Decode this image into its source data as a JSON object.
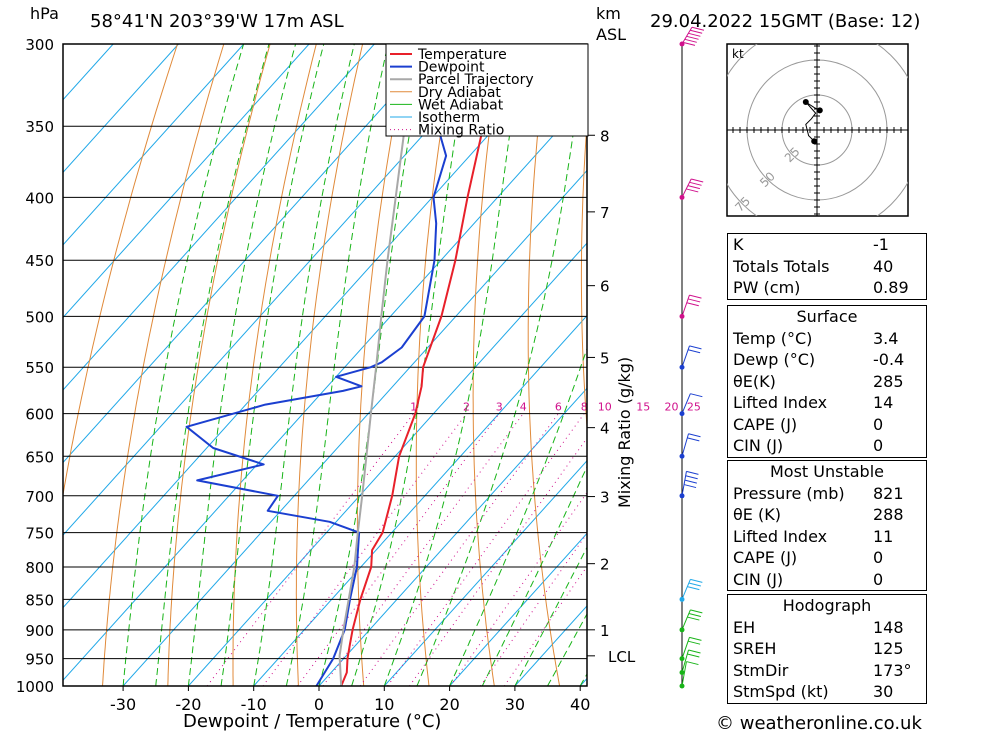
{
  "header": {
    "hpa_label": "hPa",
    "location": "58°41'N  203°39'W  17m  ASL",
    "km_label": "km",
    "asl_label": "ASL",
    "datetime": "29.04.2022  15GMT  (Base: 12)"
  },
  "footer": {
    "copyright": "© weatheronline.co.uk"
  },
  "colors": {
    "temperature": "#e8202a",
    "dewpoint": "#1b3fd0",
    "parcel": "#a8a8a8",
    "dry_adiabat": "#e08a3a",
    "wet_adiabat": "#18b418",
    "isotherm": "#20a8e8",
    "mixing_ratio": "#d0108c"
  },
  "chart_data": {
    "type": "line",
    "title": "58°41'N  203°39'W  17m  ASL",
    "xlabel": "Dewpoint / Temperature (°C)",
    "ylabel": "hPa",
    "right_label": "Mixing Ratio (g/kg)",
    "xlim": [
      -40,
      40
    ],
    "ylim": [
      1000,
      300
    ],
    "x_ticks": [
      "-30",
      "-20",
      "-10",
      "0",
      "10",
      "20",
      "30",
      "40"
    ],
    "pressure_levels": [
      "300",
      "350",
      "400",
      "450",
      "500",
      "550",
      "600",
      "650",
      "700",
      "750",
      "800",
      "850",
      "900",
      "950",
      "1000"
    ],
    "km_ticks": [
      {
        "km": "1",
        "p": 900
      },
      {
        "km": "2",
        "p": 795
      },
      {
        "km": "3",
        "p": 701
      },
      {
        "km": "4",
        "p": 616
      },
      {
        "km": "5",
        "p": 540
      },
      {
        "km": "6",
        "p": 472
      },
      {
        "km": "7",
        "p": 411
      },
      {
        "km": "8",
        "p": 356
      }
    ],
    "lcl": {
      "label": "LCL",
      "p": 945
    },
    "mixing_ratio_labels": [
      "1",
      "2",
      "3",
      "4",
      "6",
      "8",
      "10",
      "15",
      "20",
      "25"
    ],
    "legend": [
      "Temperature",
      "Dewpoint",
      "Parcel Trajectory",
      "Dry Adiabat",
      "Wet Adiabat",
      "Isotherm",
      "Mixing Ratio"
    ],
    "series": [
      {
        "name": "Temperature",
        "points": [
          [
            1000,
            3.4
          ],
          [
            975,
            2.4
          ],
          [
            950,
            0.6
          ],
          [
            925,
            -1.0
          ],
          [
            900,
            -2.6
          ],
          [
            850,
            -5.6
          ],
          [
            800,
            -8.4
          ],
          [
            775,
            -10.6
          ],
          [
            750,
            -11.4
          ],
          [
            700,
            -15.0
          ],
          [
            650,
            -19.4
          ],
          [
            600,
            -22.8
          ],
          [
            570,
            -25.6
          ],
          [
            550,
            -28.0
          ],
          [
            500,
            -32.2
          ],
          [
            450,
            -37.8
          ],
          [
            400,
            -44.6
          ],
          [
            350,
            -52.0
          ],
          [
            300,
            -60.4
          ]
        ]
      },
      {
        "name": "Dewpoint",
        "points": [
          [
            1000,
            -0.4
          ],
          [
            950,
            -1.6
          ],
          [
            900,
            -3.8
          ],
          [
            850,
            -7.2
          ],
          [
            800,
            -10.6
          ],
          [
            750,
            -15.0
          ],
          [
            735,
            -21.0
          ],
          [
            720,
            -32.0
          ],
          [
            700,
            -32.5
          ],
          [
            680,
            -47.0
          ],
          [
            660,
            -39.0
          ],
          [
            640,
            -49.0
          ],
          [
            615,
            -56.0
          ],
          [
            590,
            -47.0
          ],
          [
            575,
            -37.0
          ],
          [
            570,
            -34.8
          ],
          [
            560,
            -40.0
          ],
          [
            550,
            -36.0
          ],
          [
            545,
            -35.0
          ],
          [
            530,
            -34.0
          ],
          [
            500,
            -34.8
          ],
          [
            450,
            -41.0
          ],
          [
            420,
            -45.8
          ],
          [
            400,
            -49.8
          ],
          [
            370,
            -53.6
          ],
          [
            350,
            -59.0
          ],
          [
            320,
            -64.0
          ],
          [
            300,
            -71.0
          ]
        ]
      },
      {
        "name": "Parcel Trajectory",
        "points": [
          [
            1000,
            3.4
          ],
          [
            945,
            -1.0
          ],
          [
            900,
            -4.0
          ],
          [
            850,
            -7.4
          ],
          [
            800,
            -11.0
          ],
          [
            750,
            -15.2
          ],
          [
            700,
            -19.6
          ],
          [
            650,
            -24.4
          ],
          [
            600,
            -29.6
          ],
          [
            550,
            -35.2
          ],
          [
            500,
            -41.4
          ],
          [
            450,
            -48.2
          ],
          [
            400,
            -55.6
          ],
          [
            350,
            -64.0
          ],
          [
            300,
            -73.6
          ]
        ]
      }
    ],
    "wind_barbs": [
      {
        "p": 1000,
        "dir": 200,
        "spd": 10
      },
      {
        "p": 975,
        "dir": 210,
        "spd": 15
      },
      {
        "p": 950,
        "dir": 215,
        "spd": 20
      },
      {
        "p": 900,
        "dir": 220,
        "spd": 30
      },
      {
        "p": 850,
        "dir": 220,
        "spd": 25
      },
      {
        "p": 700,
        "dir": 200,
        "spd": 40
      },
      {
        "p": 650,
        "dir": 210,
        "spd": 15
      },
      {
        "p": 600,
        "dir": 220,
        "spd": 10
      },
      {
        "p": 550,
        "dir": 215,
        "spd": 20
      },
      {
        "p": 500,
        "dir": 215,
        "spd": 25
      },
      {
        "p": 400,
        "dir": 225,
        "spd": 40
      },
      {
        "p": 300,
        "dir": 230,
        "spd": 60
      }
    ],
    "hodograph": {
      "label": "kt",
      "ring_labels": [
        "25",
        "50",
        "75"
      ],
      "points": [
        [
          -2,
          -8
        ],
        [
          -6,
          -4
        ],
        [
          -8,
          4
        ],
        [
          -4,
          8
        ],
        [
          -1,
          12
        ],
        [
          -8,
          20
        ],
        [
          -2,
          16
        ],
        [
          2,
          14
        ]
      ]
    }
  },
  "indices": {
    "general": [
      {
        "key": "K",
        "value": "-1"
      },
      {
        "key": "Totals Totals",
        "value": "40"
      },
      {
        "key": "PW (cm)",
        "value": "0.89"
      }
    ],
    "surface_title": "Surface",
    "surface": [
      {
        "key": "Temp (°C)",
        "value": "3.4"
      },
      {
        "key": "Dewp (°C)",
        "value": "-0.4"
      },
      {
        "key": "θE(K)",
        "value": "285"
      },
      {
        "key": "Lifted Index",
        "value": "14"
      },
      {
        "key": "CAPE (J)",
        "value": "0"
      },
      {
        "key": "CIN (J)",
        "value": "0"
      }
    ],
    "most_unstable_title": "Most Unstable",
    "most_unstable": [
      {
        "key": "Pressure (mb)",
        "value": "821"
      },
      {
        "key": "θE (K)",
        "value": "288"
      },
      {
        "key": "Lifted Index",
        "value": "11"
      },
      {
        "key": "CAPE (J)",
        "value": "0"
      },
      {
        "key": "CIN (J)",
        "value": "0"
      }
    ],
    "hodograph_title": "Hodograph",
    "hodograph": [
      {
        "key": "EH",
        "value": "148"
      },
      {
        "key": "SREH",
        "value": "125"
      },
      {
        "key": "StmDir",
        "value": "173°"
      },
      {
        "key": "StmSpd (kt)",
        "value": "30"
      }
    ]
  }
}
